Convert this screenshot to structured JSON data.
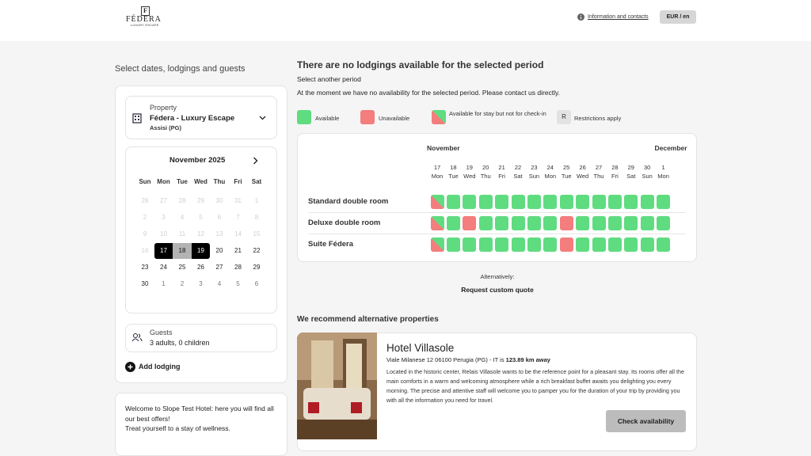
{
  "header": {
    "logo_mark": "F",
    "logo_name": "FÉDERA",
    "logo_tagline": "LUXURY ESCAPE",
    "info_link": "Information and contacts",
    "currency_button": "EUR / en"
  },
  "sidebar": {
    "title": "Select dates, lodgings and guests",
    "property": {
      "label": "Property",
      "name": "Fédera - Luxury Escape",
      "location": "Assisi (PG)"
    },
    "calendar": {
      "month_title": "November 2025",
      "weekdays": [
        "Sun",
        "Mon",
        "Tue",
        "Wed",
        "Thu",
        "Fri",
        "Sat"
      ],
      "weeks": [
        [
          26,
          27,
          28,
          29,
          30,
          31,
          1
        ],
        [
          2,
          3,
          4,
          5,
          6,
          7,
          8
        ],
        [
          9,
          10,
          11,
          12,
          13,
          14,
          15
        ],
        [
          16,
          17,
          18,
          19,
          20,
          21,
          22
        ],
        [
          23,
          24,
          25,
          26,
          27,
          28,
          29
        ],
        [
          30,
          1,
          2,
          3,
          4,
          5,
          6
        ]
      ]
    },
    "guests": {
      "label": "Guests",
      "value": "3 adults, 0 children"
    },
    "add_lodging": "Add lodging",
    "welcome": {
      "line1": "Welcome to Slope Test Hotel: here you will find all our best offers!",
      "line2": "Treat yourself to a stay of wellness."
    }
  },
  "main": {
    "title": "There are no lodgings available for the selected period",
    "subtitle": "Select another period",
    "message": "At the moment we have no availability for the selected period. Please contact us directly.",
    "legend": [
      {
        "label": "Available",
        "color": "#5fdc80"
      },
      {
        "label": "Unavailable",
        "color": "#f47d7d"
      },
      {
        "label": "Available for stay but not for check-in",
        "color": "#5fdc80",
        "color2": "#f47d7d"
      },
      {
        "label": "Restrictions apply",
        "key": "R",
        "color": "#e3e3e3"
      }
    ],
    "availability": {
      "months": [
        "November",
        "December"
      ],
      "dates": [
        {
          "day": 17,
          "weekday": "Mon"
        },
        {
          "day": 18,
          "weekday": "Tue"
        },
        {
          "day": 19,
          "weekday": "Wed"
        },
        {
          "day": 20,
          "weekday": "Thu"
        },
        {
          "day": 21,
          "weekday": "Fri"
        },
        {
          "day": 22,
          "weekday": "Sat"
        },
        {
          "day": 23,
          "weekday": "Sun"
        },
        {
          "day": 24,
          "weekday": "Mon"
        },
        {
          "day": 25,
          "weekday": "Tue"
        },
        {
          "day": 26,
          "weekday": "Wed"
        },
        {
          "day": 27,
          "weekday": "Thu"
        },
        {
          "day": 28,
          "weekday": "Fri"
        },
        {
          "day": 29,
          "weekday": "Sat"
        },
        {
          "day": 30,
          "weekday": "Sun"
        },
        {
          "day": 1,
          "weekday": "Mon"
        }
      ],
      "rooms": [
        {
          "name": "Standard double room",
          "status": [
            2,
            0,
            0,
            0,
            0,
            0,
            0,
            0,
            0,
            0,
            0,
            0,
            0,
            0,
            0
          ]
        },
        {
          "name": "Deluxe double room",
          "status": [
            2,
            0,
            1,
            0,
            0,
            0,
            0,
            0,
            1,
            0,
            0,
            0,
            0,
            0,
            0
          ]
        },
        {
          "name": "Suite Fédera",
          "status": [
            2,
            0,
            0,
            0,
            0,
            0,
            0,
            0,
            1,
            0,
            0,
            0,
            0,
            0,
            0
          ]
        }
      ]
    },
    "alternatively": "Alternatively:",
    "request_quote": "Request custom quote",
    "recommend_title": "We recommend alternative properties",
    "hotel": {
      "name": "Hotel Villasole",
      "address": "Viale Milanese 12 06100 Perugia (PG) - IT",
      "distance_prefix": "is",
      "distance": "123.89 km away",
      "description": "Located in the historic center, Relais Villasole wants to be the reference point for a pleasant stay. Its rooms offer all the main comforts in a warm and welcoming atmosphere while a rich breakfast buffet awaits you delighting you every morning. The precise and attentive staff will welcome you to pamper you for the duration of your trip by providing you with all the information you need for travel.",
      "button": "Check availability"
    }
  }
}
